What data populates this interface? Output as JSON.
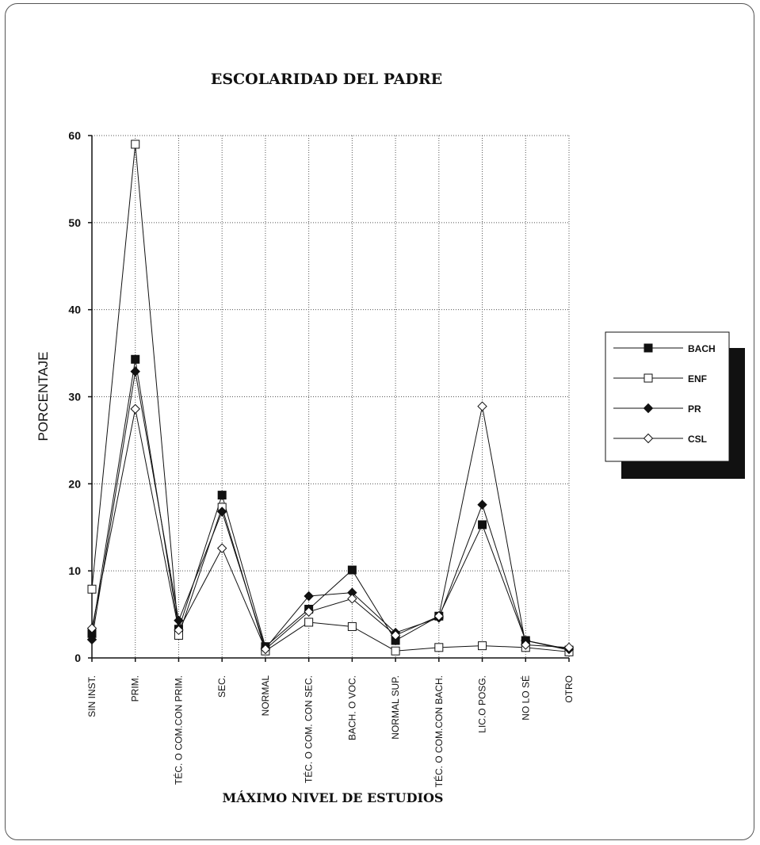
{
  "chart_data": {
    "type": "line",
    "title": "ESCOLARIDAD DEL PADRE",
    "xlabel": "MÁXIMO NIVEL DE ESTUDIOS",
    "ylabel": "PORCENTAJE",
    "ylim": [
      0,
      60
    ],
    "yticks": [
      0,
      10,
      20,
      30,
      40,
      50,
      60
    ],
    "grid": true,
    "legend_position": "right",
    "categories": [
      "SIN INST.",
      "PRIM.",
      "TÉC. O COM.CON PRIM.",
      "SEC.",
      "NORMAL",
      "TÉC. O COM. CON SEC.",
      "BACH. O VOC.",
      "NORMAL SUP.",
      "TÉC. O COM.CON BACH.",
      "LIC.O POSG.",
      "NO LO SÉ",
      "OTRO"
    ],
    "series": [
      {
        "name": "BACH",
        "marker": "square-filled",
        "values": [
          2.8,
          34.3,
          3.3,
          18.7,
          1.3,
          5.6,
          10.1,
          2.0,
          4.8,
          15.3,
          2.0,
          0.9
        ]
      },
      {
        "name": "ENF",
        "marker": "square-open",
        "values": [
          7.9,
          59.0,
          2.6,
          17.3,
          0.8,
          4.1,
          3.6,
          0.8,
          1.2,
          1.4,
          1.2,
          0.7
        ]
      },
      {
        "name": "PR",
        "marker": "diamond-filled",
        "values": [
          2.1,
          32.9,
          4.3,
          16.8,
          1.1,
          7.1,
          7.5,
          2.9,
          4.6,
          17.6,
          2.0,
          1.0
        ]
      },
      {
        "name": "CSL",
        "marker": "diamond-open",
        "values": [
          3.4,
          28.6,
          3.2,
          12.6,
          1.0,
          5.3,
          6.8,
          2.6,
          4.8,
          28.9,
          1.5,
          1.2
        ]
      }
    ]
  },
  "colors": {
    "line": "#111111",
    "grid": "#555555"
  }
}
